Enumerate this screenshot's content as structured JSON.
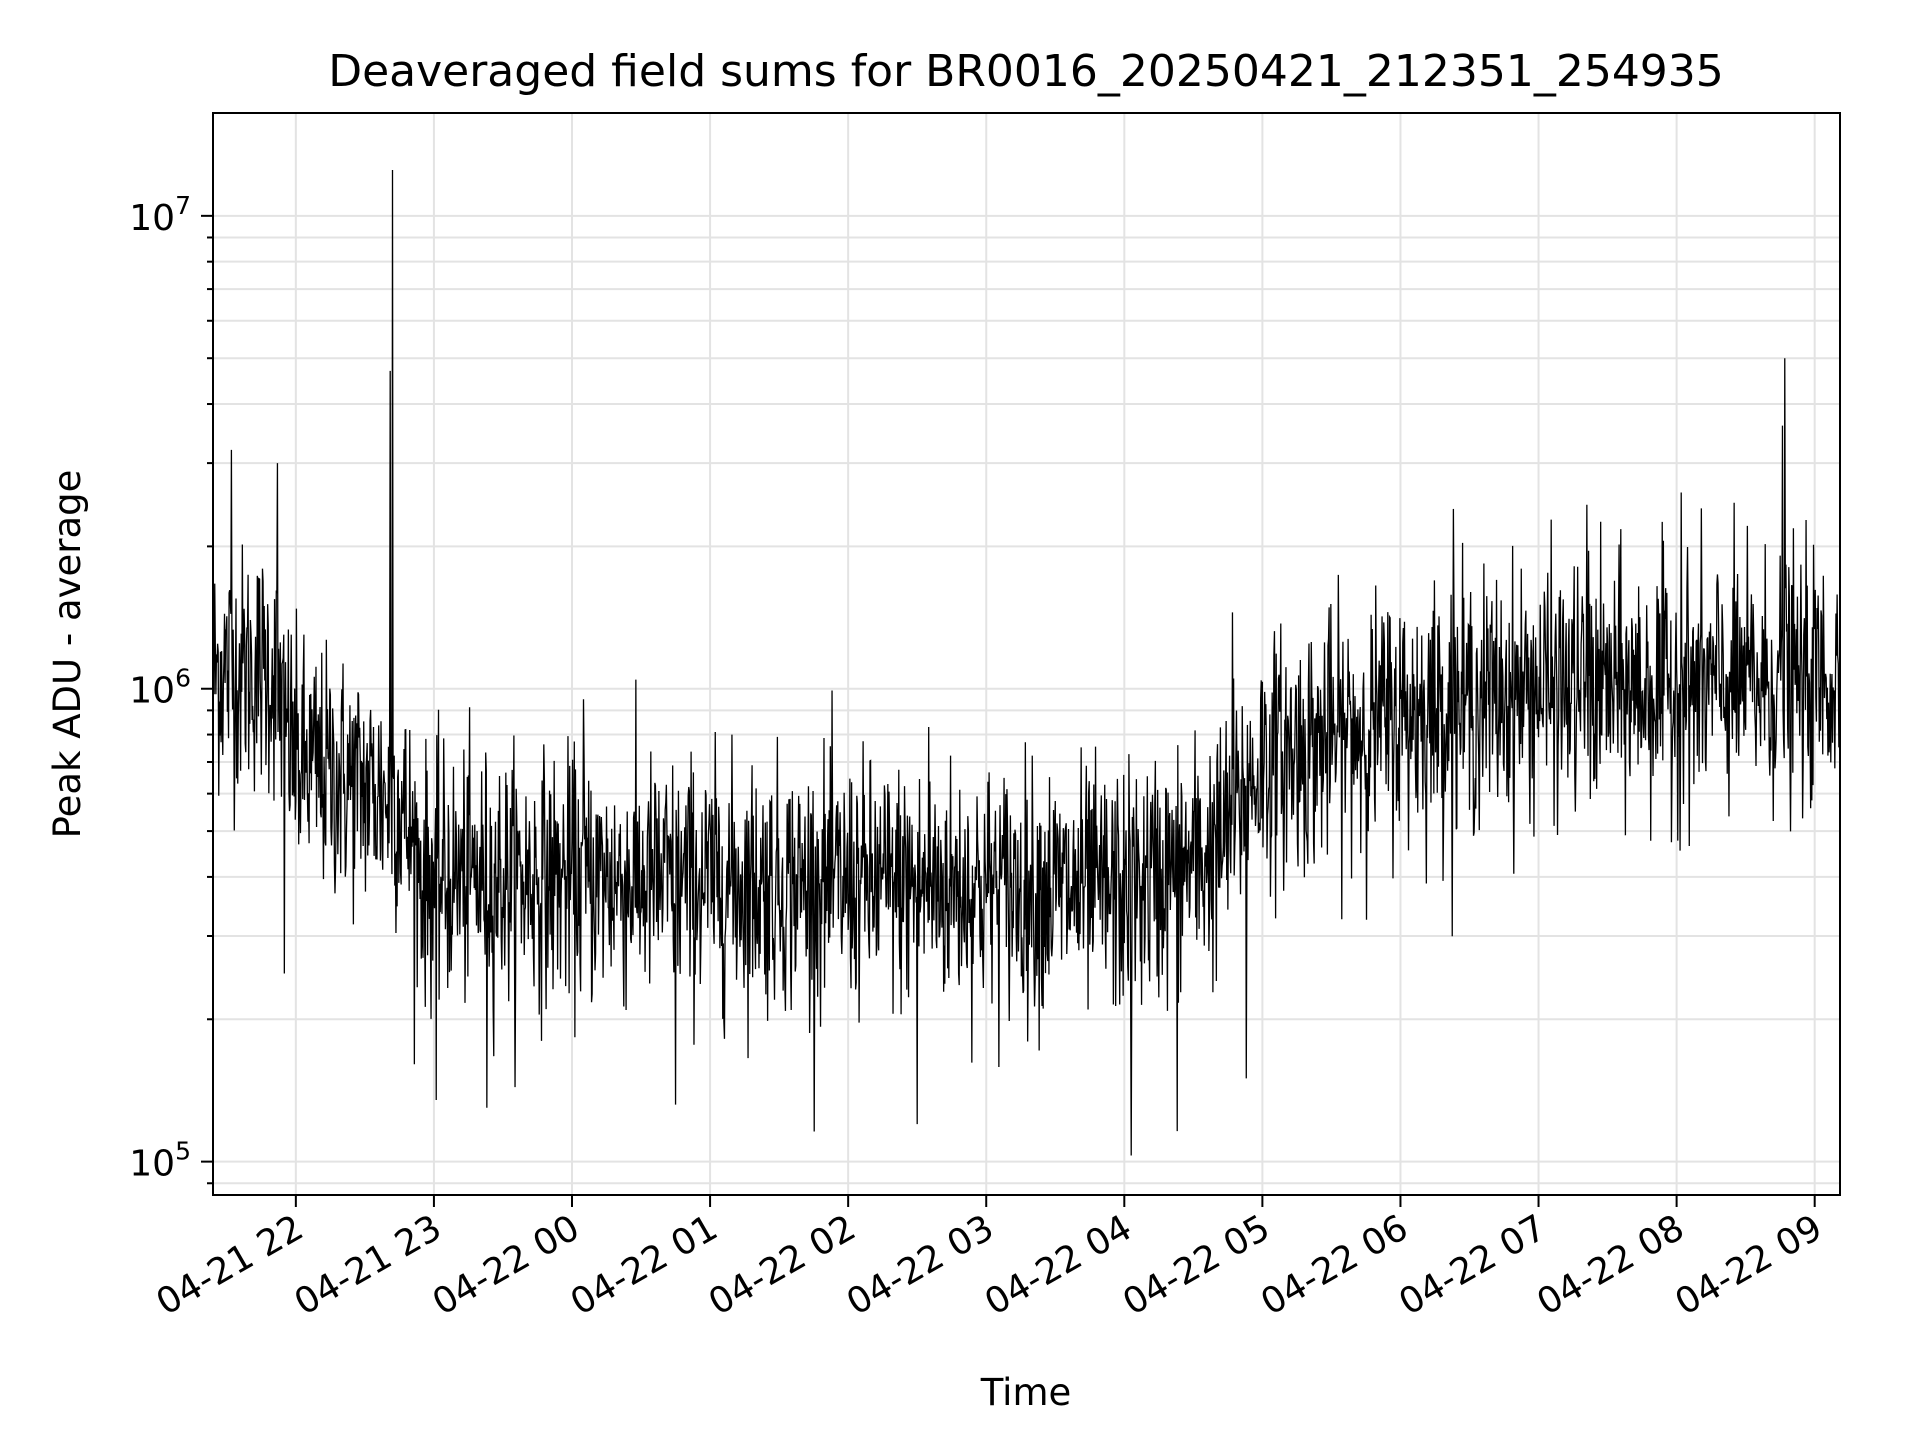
{
  "chart_data": {
    "type": "line",
    "title": "Deaveraged field sums for BR0016_20250421_212351_254935",
    "xlabel": "Time",
    "ylabel": "Peak ADU - average",
    "yscale": "log",
    "ylim": [
      85000,
      16500000
    ],
    "xlim": [
      "04-21 21:24",
      "04-22 09:11"
    ],
    "grid": true,
    "line_color": "#000000",
    "x_ticks": [
      "04-21 22",
      "04-21 23",
      "04-22 00",
      "04-22 01",
      "04-22 02",
      "04-22 03",
      "04-22 04",
      "04-22 05",
      "04-22 06",
      "04-22 07",
      "04-22 08",
      "04-22 09"
    ],
    "y_ticks": [
      {
        "value": 100000,
        "base": "10",
        "exp": "5"
      },
      {
        "value": 1000000,
        "base": "10",
        "exp": "6"
      },
      {
        "value": 10000000,
        "base": "10",
        "exp": "7"
      }
    ],
    "sampling_minutes": 0.25,
    "baseline": [
      {
        "x": "04-21 21:24",
        "y": 1100000
      },
      {
        "x": "04-21 21:50",
        "y": 1100000
      },
      {
        "x": "04-21 22:00",
        "y": 700000
      },
      {
        "x": "04-21 22:45",
        "y": 580000
      },
      {
        "x": "04-21 22:55",
        "y": 400000
      },
      {
        "x": "04-22 03:00",
        "y": 380000
      },
      {
        "x": "04-22 04:00",
        "y": 370000
      },
      {
        "x": "04-22 04:40",
        "y": 450000
      },
      {
        "x": "04-22 05:00",
        "y": 700000
      },
      {
        "x": "04-22 06:00",
        "y": 880000
      },
      {
        "x": "04-22 07:00",
        "y": 1000000
      },
      {
        "x": "04-22 08:00",
        "y": 1000000
      },
      {
        "x": "04-22 09:11",
        "y": 1050000
      }
    ],
    "notable_points": [
      {
        "x": "04-21 21:32",
        "y": 3200000
      },
      {
        "x": "04-21 21:52",
        "y": 3000000
      },
      {
        "x": "04-21 21:55",
        "y": 250000
      },
      {
        "x": "04-21 22:41",
        "y": 4700000
      },
      {
        "x": "04-21 22:42",
        "y": 12500000
      },
      {
        "x": "04-21 23:01",
        "y": 135000
      },
      {
        "x": "04-21 23:23",
        "y": 130000
      },
      {
        "x": "04-22 00:05",
        "y": 950000
      },
      {
        "x": "04-22 00:45",
        "y": 132000
      },
      {
        "x": "04-22 02:30",
        "y": 120000
      },
      {
        "x": "04-22 02:35",
        "y": 830000
      },
      {
        "x": "04-22 04:03",
        "y": 103000
      },
      {
        "x": "04-22 04:23",
        "y": 116000
      },
      {
        "x": "04-22 04:47",
        "y": 1450000
      },
      {
        "x": "04-22 04:53",
        "y": 150000
      },
      {
        "x": "04-22 06:23",
        "y": 2400000
      },
      {
        "x": "04-22 07:21",
        "y": 2450000
      },
      {
        "x": "04-22 08:02",
        "y": 2600000
      },
      {
        "x": "04-22 08:46",
        "y": 3600000
      },
      {
        "x": "04-22 08:47",
        "y": 5000000
      }
    ]
  }
}
